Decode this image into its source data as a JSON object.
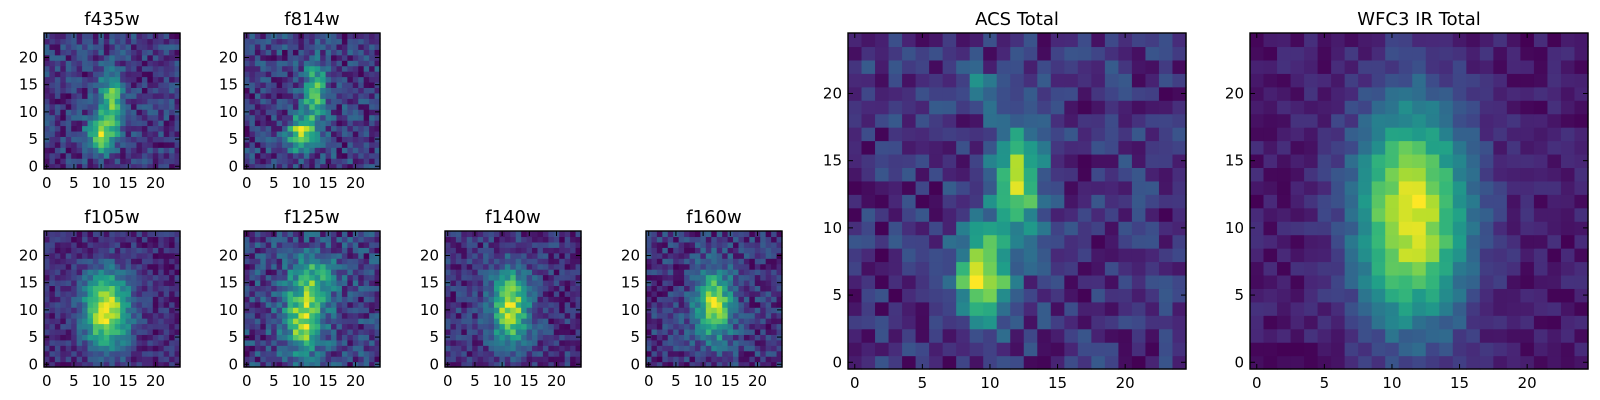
{
  "chart_data": [
    {
      "type": "heatmap",
      "title": "f435w",
      "xticks": [
        "0",
        "5",
        "10",
        "15",
        "20"
      ],
      "yticks": [
        "0",
        "5",
        "10",
        "15",
        "20"
      ],
      "xlim": [
        0,
        25
      ],
      "ylim": [
        0,
        25
      ],
      "colormap": "viridis",
      "structure": {
        "components": [
          {
            "x": 10.5,
            "y": 6.5,
            "sx": 1.8,
            "sy": 2.3,
            "amp": 0.9
          },
          {
            "x": 12.5,
            "y": 13,
            "sx": 1.6,
            "sy": 3.8,
            "amp": 0.75
          }
        ],
        "noise": 0.22,
        "seed": 11
      }
    },
    {
      "type": "heatmap",
      "title": "f814w",
      "xticks": [
        "0",
        "5",
        "10",
        "15",
        "20"
      ],
      "yticks": [
        "0",
        "5",
        "10",
        "15",
        "20"
      ],
      "xlim": [
        0,
        25
      ],
      "ylim": [
        0,
        25
      ],
      "colormap": "viridis",
      "structure": {
        "components": [
          {
            "x": 10.5,
            "y": 6.5,
            "sx": 1.7,
            "sy": 2.2,
            "amp": 0.85
          },
          {
            "x": 13,
            "y": 14,
            "sx": 1.5,
            "sy": 4,
            "amp": 0.7
          }
        ],
        "noise": 0.22,
        "seed": 23
      }
    },
    {
      "type": "heatmap",
      "title": "f105w",
      "xticks": [
        "0",
        "5",
        "10",
        "15",
        "20"
      ],
      "yticks": [
        "0",
        "5",
        "10",
        "15",
        "20"
      ],
      "xlim": [
        0,
        25
      ],
      "ylim": [
        0,
        25
      ],
      "colormap": "viridis",
      "structure": {
        "components": [
          {
            "x": 11.5,
            "y": 10.5,
            "sx": 3,
            "sy": 5,
            "amp": 0.95
          }
        ],
        "noise": 0.14,
        "seed": 37
      }
    },
    {
      "type": "heatmap",
      "title": "f125w",
      "xticks": [
        "0",
        "5",
        "10",
        "15",
        "20"
      ],
      "yticks": [
        "0",
        "5",
        "10",
        "15",
        "20"
      ],
      "xlim": [
        0,
        25
      ],
      "ylim": [
        0,
        25
      ],
      "colormap": "viridis",
      "structure": {
        "components": [
          {
            "x": 11,
            "y": 8,
            "sx": 2.5,
            "sy": 4,
            "amp": 0.75
          },
          {
            "x": 12.5,
            "y": 16,
            "sx": 3,
            "sy": 3.5,
            "amp": 0.55
          }
        ],
        "noise": 0.22,
        "seed": 41
      }
    },
    {
      "type": "heatmap",
      "title": "f140w",
      "xticks": [
        "0",
        "5",
        "10",
        "15",
        "20"
      ],
      "yticks": [
        "0",
        "5",
        "10",
        "15",
        "20"
      ],
      "xlim": [
        0,
        25
      ],
      "ylim": [
        0,
        25
      ],
      "colormap": "viridis",
      "structure": {
        "components": [
          {
            "x": 12,
            "y": 11,
            "sx": 2.4,
            "sy": 5,
            "amp": 0.9
          }
        ],
        "noise": 0.18,
        "seed": 53
      }
    },
    {
      "type": "heatmap",
      "title": "f160w",
      "xticks": [
        "0",
        "5",
        "10",
        "15",
        "20"
      ],
      "yticks": [
        "0",
        "5",
        "10",
        "15",
        "20"
      ],
      "xlim": [
        0,
        25
      ],
      "ylim": [
        0,
        25
      ],
      "colormap": "viridis",
      "structure": {
        "components": [
          {
            "x": 12.5,
            "y": 11.5,
            "sx": 2.4,
            "sy": 4.5,
            "amp": 0.9
          }
        ],
        "noise": 0.2,
        "seed": 67
      }
    },
    {
      "type": "heatmap",
      "title": "ACS Total",
      "xticks": [
        "0",
        "5",
        "10",
        "15",
        "20"
      ],
      "yticks": [
        "0",
        "5",
        "10",
        "15",
        "20"
      ],
      "xlim": [
        0,
        25
      ],
      "ylim": [
        0,
        25
      ],
      "colormap": "viridis",
      "structure": {
        "components": [
          {
            "x": 10,
            "y": 7,
            "sx": 1.5,
            "sy": 2.3,
            "amp": 0.95
          },
          {
            "x": 12.5,
            "y": 14,
            "sx": 1.4,
            "sy": 3,
            "amp": 0.8
          },
          {
            "x": 9.5,
            "y": 21,
            "sx": 1.2,
            "sy": 1,
            "amp": 0.35
          }
        ],
        "noise": 0.17,
        "seed": 79
      }
    },
    {
      "type": "heatmap",
      "title": "WFC3 IR Total",
      "xticks": [
        "0",
        "5",
        "10",
        "15",
        "20"
      ],
      "yticks": [
        "0",
        "5",
        "10",
        "15",
        "20"
      ],
      "xlim": [
        0,
        25
      ],
      "ylim": [
        0,
        25
      ],
      "colormap": "viridis",
      "structure": {
        "components": [
          {
            "x": 12,
            "y": 11.5,
            "sx": 3,
            "sy": 6,
            "amp": 1.0
          }
        ],
        "noise": 0.08,
        "seed": 97
      }
    }
  ]
}
